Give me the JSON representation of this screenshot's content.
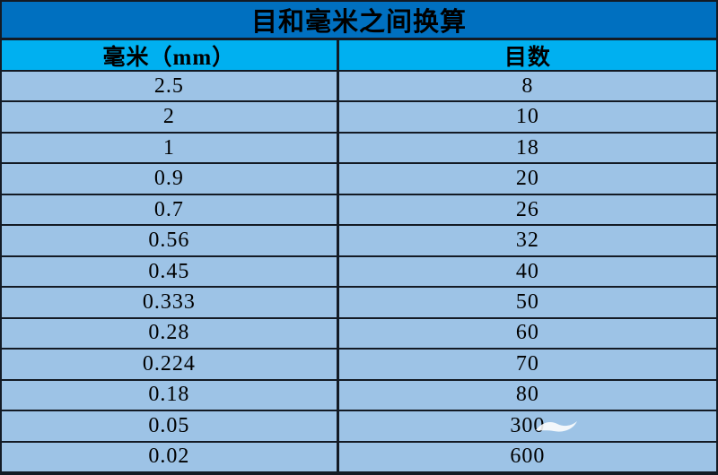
{
  "table": {
    "title": "目和毫米之间换算",
    "columns": [
      {
        "label": "毫米（mm）"
      },
      {
        "label": "目数"
      }
    ],
    "rows": [
      {
        "mm": "2.5",
        "mesh": "8"
      },
      {
        "mm": "2",
        "mesh": "10"
      },
      {
        "mm": "1",
        "mesh": "18"
      },
      {
        "mm": "0.9",
        "mesh": "20"
      },
      {
        "mm": "0.7",
        "mesh": "26"
      },
      {
        "mm": "0.56",
        "mesh": "32"
      },
      {
        "mm": "0.45",
        "mesh": "40"
      },
      {
        "mm": "0.333",
        "mesh": "50"
      },
      {
        "mm": "0.28",
        "mesh": "60"
      },
      {
        "mm": "0.224",
        "mesh": "70"
      },
      {
        "mm": "0.18",
        "mesh": "80"
      },
      {
        "mm": "0.05",
        "mesh": "300"
      },
      {
        "mm": "0.02",
        "mesh": "600"
      }
    ]
  },
  "colors": {
    "title_bg": "#0070c0",
    "header_bg": "#00b0f0",
    "row_bg": "#9dc3e6",
    "border": "#131a24",
    "text": "#000000",
    "watermark": "#ffffff"
  },
  "chart_data": {
    "type": "table",
    "title": "目和毫米之间换算",
    "columns": [
      "毫米（mm）",
      "目数"
    ],
    "mm_values": [
      2.5,
      2,
      1,
      0.9,
      0.7,
      0.56,
      0.45,
      0.333,
      0.28,
      0.224,
      0.18,
      0.05,
      0.02
    ],
    "mesh_values": [
      8,
      10,
      18,
      20,
      26,
      32,
      40,
      50,
      60,
      70,
      80,
      300,
      600
    ]
  }
}
